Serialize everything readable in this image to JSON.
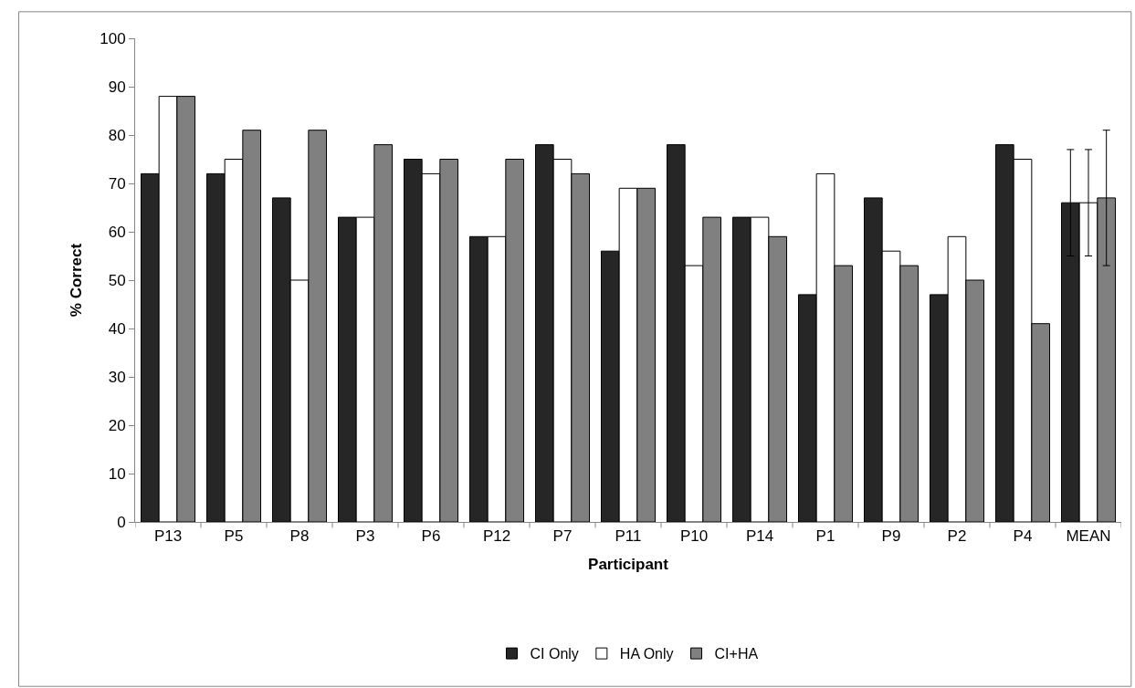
{
  "chart_data": {
    "type": "bar",
    "xlabel": "Participant",
    "ylabel": "% Correct",
    "categories": [
      "P13",
      "P5",
      "P8",
      "P3",
      "P6",
      "P12",
      "P7",
      "P11",
      "P10",
      "P14",
      "P1",
      "P9",
      "P2",
      "P4",
      "MEAN"
    ],
    "series": [
      {
        "name": "CI Only",
        "color": "#262626",
        "values": [
          72,
          72,
          67,
          63,
          75,
          59,
          78,
          56,
          78,
          63,
          47,
          67,
          47,
          78,
          66
        ],
        "errors": [
          null,
          null,
          null,
          null,
          null,
          null,
          null,
          null,
          null,
          null,
          null,
          null,
          null,
          null,
          11
        ]
      },
      {
        "name": "HA Only",
        "color": "#ffffff",
        "values": [
          88,
          75,
          50,
          63,
          72,
          59,
          75,
          69,
          53,
          63,
          72,
          56,
          59,
          75,
          66
        ],
        "errors": [
          null,
          null,
          null,
          null,
          null,
          null,
          null,
          null,
          null,
          null,
          null,
          null,
          null,
          null,
          11
        ]
      },
      {
        "name": "CI+HA",
        "color": "#808080",
        "values": [
          88,
          81,
          81,
          78,
          75,
          75,
          72,
          69,
          63,
          59,
          53,
          53,
          50,
          41,
          67
        ],
        "errors": [
          null,
          null,
          null,
          null,
          null,
          null,
          null,
          null,
          null,
          null,
          null,
          null,
          null,
          null,
          14
        ]
      }
    ],
    "ylim": [
      0,
      100
    ],
    "yticks": [
      0,
      10,
      20,
      30,
      40,
      50,
      60,
      70,
      80,
      90,
      100
    ],
    "legend": "bottom"
  }
}
